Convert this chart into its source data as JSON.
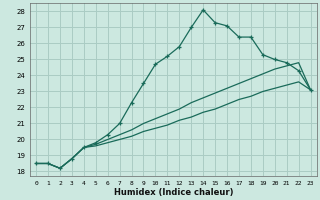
{
  "xlabel": "Humidex (Indice chaleur)",
  "ylabel": "",
  "background_color": "#cce8e0",
  "grid_color": "#aaccc4",
  "line_color": "#1a6b5a",
  "xlim": [
    -0.5,
    23.5
  ],
  "ylim": [
    17.7,
    28.5
  ],
  "xticks": [
    0,
    1,
    2,
    3,
    4,
    5,
    6,
    7,
    8,
    9,
    10,
    11,
    12,
    13,
    14,
    15,
    16,
    17,
    18,
    19,
    20,
    21,
    22,
    23
  ],
  "yticks": [
    18,
    19,
    20,
    21,
    22,
    23,
    24,
    25,
    26,
    27,
    28
  ],
  "curve1_x": [
    0,
    1,
    2,
    3,
    4,
    5,
    6,
    7,
    8,
    9,
    10,
    11,
    12,
    13,
    14,
    15,
    16,
    17,
    18,
    19,
    20,
    21,
    22,
    23
  ],
  "curve1_y": [
    18.5,
    18.5,
    18.2,
    18.8,
    19.5,
    19.8,
    20.3,
    21.0,
    22.3,
    23.5,
    24.7,
    25.2,
    25.8,
    27.0,
    28.1,
    27.3,
    27.1,
    26.4,
    26.4,
    25.3,
    25.0,
    24.8,
    24.3,
    23.1
  ],
  "curve2_x": [
    0,
    1,
    2,
    3,
    4,
    5,
    6,
    7,
    8,
    9,
    10,
    11,
    12,
    13,
    14,
    15,
    16,
    17,
    18,
    19,
    20,
    21,
    22,
    23
  ],
  "curve2_y": [
    18.5,
    18.5,
    18.2,
    18.8,
    19.5,
    19.7,
    20.0,
    20.3,
    20.6,
    21.0,
    21.3,
    21.6,
    21.9,
    22.3,
    22.6,
    22.9,
    23.2,
    23.5,
    23.8,
    24.1,
    24.4,
    24.6,
    24.8,
    23.1
  ],
  "curve3_x": [
    0,
    1,
    2,
    3,
    4,
    5,
    6,
    7,
    8,
    9,
    10,
    11,
    12,
    13,
    14,
    15,
    16,
    17,
    18,
    19,
    20,
    21,
    22,
    23
  ],
  "curve3_y": [
    18.5,
    18.5,
    18.2,
    18.8,
    19.5,
    19.6,
    19.8,
    20.0,
    20.2,
    20.5,
    20.7,
    20.9,
    21.2,
    21.4,
    21.7,
    21.9,
    22.2,
    22.5,
    22.7,
    23.0,
    23.2,
    23.4,
    23.6,
    23.1
  ]
}
